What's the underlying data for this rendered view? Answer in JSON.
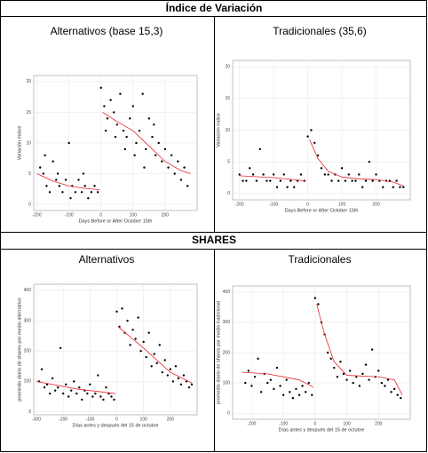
{
  "table": {
    "sections": [
      {
        "heading": "Índice de Variación",
        "charts": [
          {
            "type": "scatter",
            "title": "Alternativos (base 15,3)",
            "x_label": "Days Before or After October 15th",
            "y_label": "Variación índice",
            "xlim": [
              -210,
              300
            ],
            "ylim": [
              -1,
              21
            ],
            "xticks": [
              -200,
              -100,
              0,
              100,
              200
            ],
            "yticks": [
              0,
              5,
              10,
              15,
              20
            ],
            "grid": true,
            "color": "#000000",
            "trend_color": "#e8252a",
            "points": {
              "x": [
                -190,
                -180,
                -170,
                -160,
                -150,
                -140,
                -130,
                -120,
                -110,
                -100,
                -90,
                -80,
                -70,
                -60,
                -50,
                -40,
                -30,
                -20,
                -10,
                -175,
                -135,
                -95,
                -55,
                0,
                10,
                20,
                30,
                40,
                50,
                60,
                70,
                80,
                90,
                100,
                110,
                120,
                130,
                140,
                150,
                160,
                170,
                180,
                190,
                200,
                210,
                220,
                230,
                240,
                250,
                260,
                270,
                15,
                45,
                75,
                105,
                135,
                165
              ],
              "y": [
                6,
                5,
                3,
                2,
                7,
                4,
                3,
                2,
                4,
                10,
                3,
                2,
                4,
                2,
                3,
                1,
                2,
                3,
                2,
                8,
                5,
                1,
                5,
                19,
                16,
                14,
                17,
                15,
                13,
                18,
                12,
                11,
                14,
                16,
                10,
                12,
                18,
                9,
                14,
                11,
                8,
                10,
                7,
                9,
                6,
                8,
                5,
                7,
                4,
                6,
                3,
                12,
                11,
                9,
                8,
                6,
                13
              ]
            },
            "trend": [
              {
                "x": [
                  -200,
                  -150,
                  -100,
                  -50,
                  -5
                ],
                "y": [
                  5,
                  3.8,
                  3,
                  2.6,
                  2.4
                ]
              },
              {
                "x": [
                  5,
                  50,
                  100,
                  150,
                  200,
                  250,
                  280
                ],
                "y": [
                  15,
                  13.5,
                  12,
                  9.5,
                  7,
                  5.5,
                  5
                ]
              }
            ]
          },
          {
            "type": "scatter",
            "title": "Tradicionales (35,6)",
            "x_label": "Days Before or After October 15th",
            "y_label": "Variación índice",
            "xlim": [
              -220,
              300
            ],
            "ylim": [
              -1,
              21
            ],
            "xticks": [
              -200,
              -100,
              0,
              100,
              200
            ],
            "yticks": [
              0,
              5,
              10,
              15,
              20
            ],
            "grid": true,
            "color": "#000000",
            "trend_color": "#e8252a",
            "points": {
              "x": [
                -200,
                -190,
                -180,
                -170,
                -160,
                -150,
                -140,
                -130,
                -120,
                -110,
                -100,
                -90,
                -80,
                -70,
                -60,
                -50,
                -40,
                -30,
                -20,
                -10,
                0,
                10,
                20,
                30,
                40,
                50,
                60,
                70,
                80,
                90,
                100,
                110,
                120,
                130,
                140,
                150,
                160,
                170,
                180,
                190,
                200,
                210,
                220,
                230,
                240,
                250,
                260,
                270,
                280
              ],
              "y": [
                3,
                2,
                2,
                4,
                3,
                2,
                7,
                3,
                2,
                2,
                3,
                1,
                2,
                3,
                1,
                2,
                1,
                2,
                3,
                2,
                9,
                10,
                8,
                6,
                4,
                3,
                3,
                2,
                3,
                2,
                4,
                2,
                3,
                2,
                2,
                3,
                1,
                2,
                5,
                2,
                3,
                2,
                1,
                2,
                2,
                1,
                2,
                1,
                1
              ]
            },
            "trend": [
              {
                "x": [
                  -200,
                  -100,
                  -5
                ],
                "y": [
                  2.8,
                  2.5,
                  2
                ]
              },
              {
                "x": [
                  5,
                  30,
                  60,
                  100,
                  150,
                  200,
                  250,
                  280
                ],
                "y": [
                  8.5,
                  5.5,
                  3.5,
                  2.6,
                  2.3,
                  2.2,
                  1.8,
                  1.2
                ]
              }
            ]
          }
        ]
      },
      {
        "heading": "SHARES",
        "charts": [
          {
            "type": "scatter",
            "title": "Alternativos",
            "x_label": "Días antes y después del 15 de octubre",
            "y_label": "promedio diario de shares por medio alternativo",
            "xlim": [
              -310,
              300
            ],
            "ylim": [
              -10,
              420
            ],
            "xticks": [
              -300,
              -200,
              -100,
              0,
              100,
              200
            ],
            "yticks": [
              0,
              100,
              200,
              300,
              400
            ],
            "grid": true,
            "color": "#000000",
            "trend_color": "#e8252a",
            "points": {
              "x": [
                -290,
                -280,
                -270,
                -260,
                -250,
                -240,
                -230,
                -220,
                -210,
                -200,
                -190,
                -180,
                -170,
                -160,
                -150,
                -140,
                -130,
                -120,
                -110,
                -100,
                -90,
                -80,
                -70,
                -60,
                -50,
                -40,
                -30,
                -20,
                -10,
                0,
                10,
                20,
                30,
                40,
                50,
                60,
                70,
                80,
                90,
                100,
                110,
                120,
                130,
                140,
                150,
                160,
                170,
                180,
                190,
                200,
                210,
                220,
                230,
                240,
                250,
                260,
                270,
                280
              ],
              "y": [
                100,
                140,
                80,
                90,
                60,
                110,
                70,
                80,
                210,
                60,
                90,
                50,
                70,
                100,
                60,
                80,
                40,
                70,
                60,
                90,
                50,
                60,
                120,
                50,
                40,
                80,
                60,
                50,
                40,
                330,
                280,
                340,
                260,
                300,
                220,
                270,
                240,
                310,
                200,
                230,
                180,
                260,
                150,
                190,
                160,
                220,
                130,
                170,
                120,
                140,
                100,
                150,
                110,
                90,
                120,
                100,
                80,
                90
              ]
            },
            "trend": [
              {
                "x": [
                  -300,
                  -150,
                  -5
                ],
                "y": [
                  100,
                  75,
                  60
                ]
              },
              {
                "x": [
                  5,
                  100,
                  200,
                  280
                ],
                "y": [
                  280,
                  210,
                  130,
                  95
                ]
              }
            ]
          },
          {
            "type": "scatter",
            "title": "Tradicionales",
            "x_label": "Días antes y después del 15 de octubre",
            "y_label": "promedio diario de shares por medio tradicional",
            "xlim": [
              -260,
              300
            ],
            "ylim": [
              -20,
              420
            ],
            "xticks": [
              -200,
              -100,
              0,
              100,
              200
            ],
            "yticks": [
              0,
              100,
              200,
              300,
              400
            ],
            "grid": true,
            "color": "#000000",
            "trend_color": "#e8252a",
            "points": {
              "x": [
                -220,
                -210,
                -200,
                -190,
                -180,
                -170,
                -160,
                -150,
                -140,
                -130,
                -120,
                -110,
                -100,
                -90,
                -80,
                -70,
                -60,
                -50,
                -40,
                -30,
                -20,
                -10,
                0,
                10,
                20,
                30,
                40,
                50,
                60,
                70,
                80,
                90,
                100,
                110,
                120,
                130,
                140,
                150,
                160,
                170,
                180,
                190,
                200,
                210,
                220,
                230,
                240,
                250,
                260,
                270
              ],
              "y": [
                100,
                140,
                90,
                120,
                180,
                70,
                130,
                100,
                110,
                80,
                150,
                90,
                60,
                110,
                70,
                50,
                80,
                60,
                90,
                70,
                100,
                60,
                380,
                360,
                300,
                260,
                200,
                180,
                150,
                120,
                170,
                130,
                110,
                140,
                100,
                120,
                90,
                130,
                160,
                110,
                210,
                120,
                140,
                100,
                90,
                110,
                70,
                80,
                60,
                50
              ]
            },
            "trend": [
              {
                "x": [
                  -230,
                  -150,
                  -50,
                  -5
                ],
                "y": [
                  135,
                  130,
                  110,
                  85
                ]
              },
              {
                "x": [
                  5,
                  30,
                  60,
                  100,
                  200,
                  250,
                  275
                ],
                "y": [
                  360,
                  260,
                  170,
                  125,
                  120,
                  110,
                  60
                ]
              }
            ]
          }
        ]
      }
    ]
  }
}
